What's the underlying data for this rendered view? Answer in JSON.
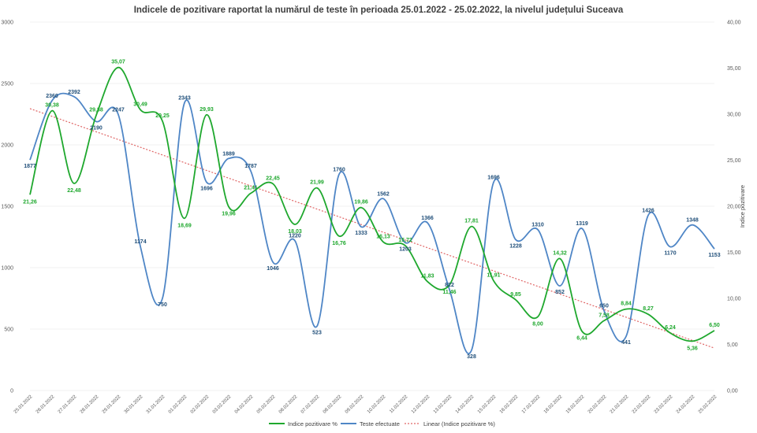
{
  "chart_data": {
    "type": "line",
    "title": "Indicele de pozitivare  raportat la numărul  de teste în perioada  25.01.2022 - 25.02.2022, la nivelul județului  Suceava",
    "y_left": {
      "range": [
        0,
        3000
      ],
      "ticks": [
        "0",
        "500",
        "1000",
        "1500",
        "2000",
        "2500",
        "3000"
      ]
    },
    "y_right": {
      "label": "Indice pozitivare",
      "range": [
        0,
        40
      ],
      "ticks": [
        "0,00",
        "5,00",
        "10,00",
        "15,00",
        "20,00",
        "25,00",
        "30,00",
        "35,00",
        "40,00"
      ]
    },
    "categories": [
      "25.01.2022",
      "26.01.2022",
      "27.01.2022",
      "28.01.2022",
      "29.01.2022",
      "30.01.2022",
      "31.01.2022",
      "01.02.2022",
      "02.02.2022",
      "03.02.2022",
      "04.02.2022",
      "05.02.2022",
      "06.02.2022",
      "07.02.2022",
      "08.02.2022",
      "09.02.2022",
      "10.02.2022",
      "11.02.2022",
      "12.02.2022",
      "13.02.2022",
      "14.02.2022",
      "15.02.2022",
      "16.02.2022",
      "17.02.2022",
      "18.02.2022",
      "19.02.2022",
      "20.02.2022",
      "21.02.2022",
      "22.02.2022",
      "23.02.2022",
      "24.02.2022",
      "25.02.2022"
    ],
    "series": [
      {
        "name": "Indice pozitivare %",
        "axis": "right",
        "color": "#1fa82e",
        "values": [
          21.26,
          30.38,
          22.48,
          29.88,
          35.07,
          30.49,
          29.25,
          18.69,
          29.93,
          19.96,
          21.41,
          22.45,
          18.03,
          21.99,
          16.76,
          19.86,
          16.13,
          15.72,
          11.83,
          11.46,
          17.81,
          11.91,
          9.85,
          8.0,
          14.32,
          6.44,
          7.58,
          8.84,
          8.27,
          6.24,
          5.36,
          6.5
        ],
        "labels": [
          "21,26",
          "30,38",
          "22,48",
          "29,88",
          "35,07",
          "30,49",
          "29,25",
          "18,69",
          "29,93",
          "19,96",
          "21,41",
          "22,45",
          "18,03",
          "21,99",
          "16,76",
          "19,86",
          "16,13",
          "15,72",
          "11,83",
          "11,46",
          "17,81",
          "11,91",
          "9,85",
          "8,00",
          "14,32",
          "6,44",
          "7,58",
          "8,84",
          "8,27",
          "6,24",
          "5,36",
          "6,50"
        ]
      },
      {
        "name": "Teste efectuate",
        "axis": "left",
        "color": "#4f86c6",
        "values": [
          1877,
          2360,
          2392,
          2190,
          2247,
          1174,
          750,
          2343,
          1696,
          1889,
          1787,
          1046,
          1220,
          523,
          1760,
          1333,
          1562,
          1203,
          1366,
          822,
          328,
          1696,
          1228,
          1310,
          852,
          1319,
          650,
          441,
          1426,
          1170,
          1348,
          1153
        ],
        "labels": [
          "1877",
          "2360",
          "2392",
          "2190",
          "2247",
          "1174",
          "750",
          "2343",
          "1696",
          "1889",
          "1787",
          "1046",
          "1220",
          "523",
          "1760",
          "1333",
          "1562",
          "1203",
          "1366",
          "822",
          "328",
          "1696",
          "1228",
          "1310",
          "852",
          "1319",
          "650",
          "441",
          "1426",
          "1170",
          "1348",
          "1153"
        ]
      }
    ],
    "trendline": {
      "name": "Linear (Indice pozitivare %)",
      "axis": "right",
      "color": "#e06666",
      "start": 30.6,
      "end": 4.6
    },
    "legend_position": "bottom"
  }
}
